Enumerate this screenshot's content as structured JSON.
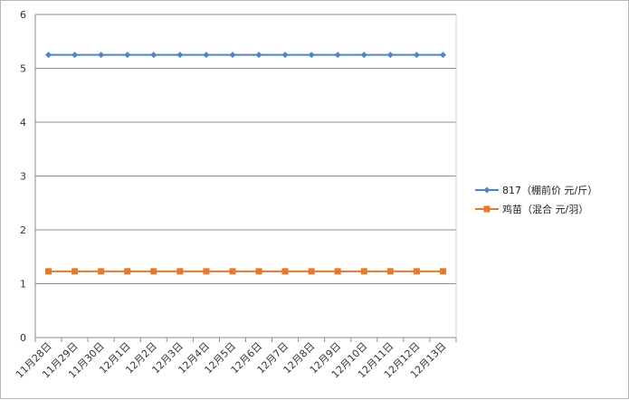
{
  "chart_data": {
    "type": "line",
    "categories": [
      "11月28日",
      "11月29日",
      "11月30日",
      "12月1日",
      "12月2日",
      "12月3日",
      "12月4日",
      "12月5日",
      "12月6日",
      "12月7日",
      "12月8日",
      "12月9日",
      "12月10日",
      "12月11日",
      "12月12日",
      "12月13日"
    ],
    "series": [
      {
        "name": "817（棚前价 元/斤）",
        "color": "#4a86c8",
        "marker": "diamond",
        "values": [
          5.25,
          5.25,
          5.25,
          5.25,
          5.25,
          5.25,
          5.25,
          5.25,
          5.25,
          5.25,
          5.25,
          5.25,
          5.25,
          5.25,
          5.25,
          5.25
        ]
      },
      {
        "name": "鸡苗（混合 元/羽）",
        "color": "#e8792a",
        "marker": "square",
        "values": [
          1.23,
          1.23,
          1.23,
          1.23,
          1.23,
          1.23,
          1.23,
          1.23,
          1.23,
          1.23,
          1.23,
          1.23,
          1.23,
          1.23,
          1.23,
          1.23
        ]
      }
    ],
    "yticks": [
      0,
      1,
      2,
      3,
      4,
      5,
      6
    ],
    "ylim": [
      0,
      6
    ],
    "grid": true,
    "legend_position": "right"
  }
}
